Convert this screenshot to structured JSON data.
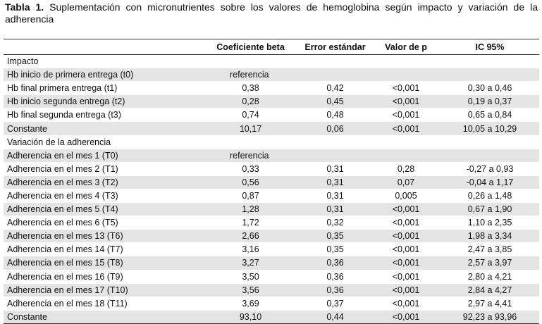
{
  "caption": {
    "label": "Tabla 1.",
    "text": " Suplementación con micronutrientes sobre los valores de hemoglobina según impacto y variación de la adherencia"
  },
  "columns": [
    "",
    "Coeficiente beta",
    "Error estándar",
    "Valor de p",
    "IC 95%"
  ],
  "rows": [
    {
      "type": "section",
      "label": "Impacto",
      "cells": [
        "",
        "",
        "",
        ""
      ]
    },
    {
      "type": "data",
      "label": "Hb inicio de primera entrega (t0)",
      "cells": [
        "referencia",
        "",
        "",
        ""
      ]
    },
    {
      "type": "data",
      "label": "Hb final primera entrega (t1)",
      "cells": [
        "0,38",
        "0,42",
        "<0,001",
        "0,30 a 0,46"
      ]
    },
    {
      "type": "data",
      "label": "Hb inicio segunda entrega (t2)",
      "cells": [
        "0,28",
        "0,45",
        "<0,001",
        "0,19 a 0,37"
      ]
    },
    {
      "type": "data",
      "label": "Hb final segunda entrega (t3)",
      "cells": [
        "0,74",
        "0,48",
        "<0,001",
        "0,65 a 0,84"
      ]
    },
    {
      "type": "data",
      "label": "Constante",
      "cells": [
        "10,17",
        "0,06",
        "<0,001",
        "10,05 a 10,29"
      ]
    },
    {
      "type": "section",
      "label": "Variación de la adherencia",
      "cells": [
        "",
        "",
        "",
        ""
      ]
    },
    {
      "type": "data",
      "label": "Adherencia en el mes 1 (T0)",
      "cells": [
        "referencia",
        "",
        "",
        ""
      ]
    },
    {
      "type": "data",
      "label": "Adherencia en el mes 2 (T1)",
      "cells": [
        "0,33",
        "0,31",
        "0,28",
        "-0,27 a 0,93"
      ]
    },
    {
      "type": "data",
      "label": "Adherencia en el mes 3 (T2)",
      "cells": [
        "0,56",
        "0,31",
        "0,07",
        "-0,04 a 1,17"
      ]
    },
    {
      "type": "data",
      "label": "Adherencia en el mes 4 (T3)",
      "cells": [
        "0,87",
        "0,31",
        "0,005",
        "0,26 a 1,48"
      ]
    },
    {
      "type": "data",
      "label": "Adherencia en el mes 5 (T4)",
      "cells": [
        "1,28",
        "0,31",
        "<0,001",
        "0,67 a 1,90"
      ]
    },
    {
      "type": "data",
      "label": "Adherencia en el mes 6 (T5)",
      "cells": [
        "1,72",
        "0,32",
        "<0,001",
        "1,10 a 2,35"
      ]
    },
    {
      "type": "data",
      "label": "Adherencia en el mes 13 (T6)",
      "cells": [
        "2,66",
        "0,35",
        "<0,001",
        "1,98 a 3,34"
      ]
    },
    {
      "type": "data",
      "label": "Adherencia en el mes 14 (T7)",
      "cells": [
        "3,16",
        "0,35",
        "<0,001",
        "2,47 a 3,85"
      ]
    },
    {
      "type": "data",
      "label": "Adherencia en el mes 15 (T8)",
      "cells": [
        "3,27",
        "0,36",
        "<0,001",
        "2,57 a 3,97"
      ]
    },
    {
      "type": "data",
      "label": "Adherencia en el mes 16 (T9)",
      "cells": [
        "3,50",
        "0,36",
        "<0,001",
        "2,80 a 4,21"
      ]
    },
    {
      "type": "data",
      "label": "Adherencia en el mes 17 (T10)",
      "cells": [
        "3,56",
        "0,36",
        "<0,001",
        "2,84 a 4,27"
      ]
    },
    {
      "type": "data",
      "label": "Adherencia en el mes 18 (T11)",
      "cells": [
        "3,69",
        "0,37",
        "<0,001",
        "2,97 a 4,41"
      ]
    },
    {
      "type": "data",
      "label": "Constante",
      "cells": [
        "93,10",
        "0,44",
        "<0,001",
        "92,23 a 93,96"
      ]
    }
  ],
  "colors": {
    "shade": "#e4e4e4",
    "rule": "#333333"
  }
}
